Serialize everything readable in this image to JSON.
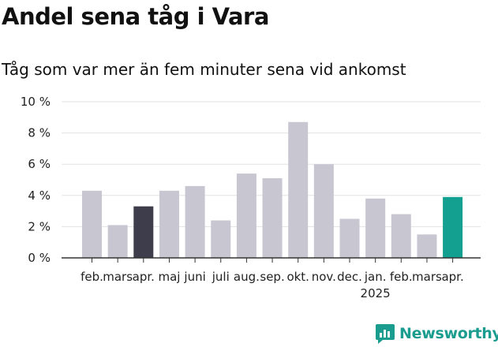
{
  "header": {
    "title": "Andel sena tåg i Vara",
    "subtitle": "Tåg som var mer än fem minuter sena vid ankomst"
  },
  "brand": {
    "name": "Newsworthy",
    "color": "#1a9c8f"
  },
  "chart_data": {
    "type": "bar",
    "categories": [
      "feb.",
      "mars",
      "apr.",
      "maj",
      "juni",
      "juli",
      "aug.",
      "sep.",
      "okt.",
      "nov.",
      "dec.",
      "jan.",
      "feb.",
      "mars",
      "apr."
    ],
    "category_sublabels": [
      "",
      "",
      "",
      "",
      "",
      "",
      "",
      "",
      "",
      "",
      "",
      "2025",
      "",
      "",
      ""
    ],
    "values": [
      4.3,
      2.1,
      3.3,
      4.3,
      4.6,
      2.4,
      5.4,
      5.1,
      8.7,
      6.0,
      2.5,
      3.8,
      2.8,
      1.5,
      3.9
    ],
    "bar_colors": [
      "#c8c6d1",
      "#c8c6d1",
      "#3e3d4b",
      "#c8c6d1",
      "#c8c6d1",
      "#c8c6d1",
      "#c8c6d1",
      "#c8c6d1",
      "#c8c6d1",
      "#c8c6d1",
      "#c8c6d1",
      "#c8c6d1",
      "#c8c6d1",
      "#c8c6d1",
      "#14a090"
    ],
    "y_ticks": [
      "0 %",
      "2 %",
      "4 %",
      "6 %",
      "8 %",
      "10 %"
    ],
    "y_tick_values": [
      0,
      2,
      4,
      6,
      8,
      10
    ],
    "ylim": [
      0,
      10
    ],
    "grid": true,
    "legend": "none"
  }
}
